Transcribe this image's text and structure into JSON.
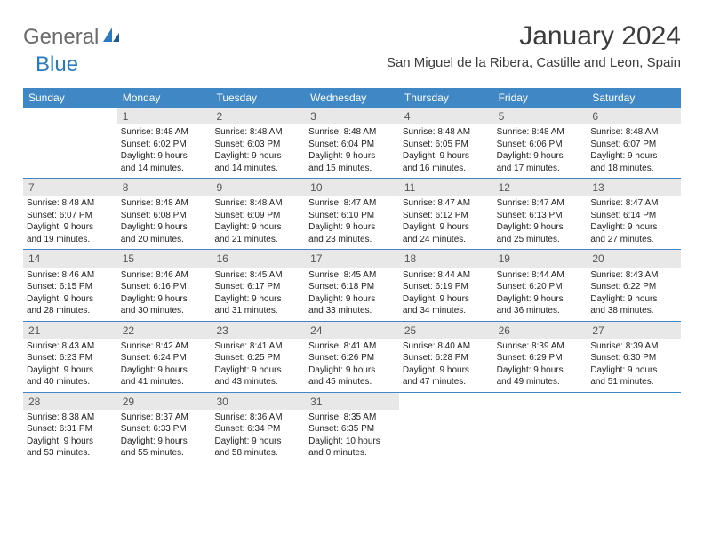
{
  "brand": {
    "part1": "General",
    "part2": "Blue"
  },
  "title": "January 2024",
  "location": "San Miguel de la Ribera, Castille and Leon, Spain",
  "colors": {
    "header_bg": "#3f88c5",
    "header_text": "#ffffff",
    "daynum_bg": "#e8e8e8",
    "rule": "#3f88c5",
    "body_text": "#222222",
    "title_text": "#3c3c3c",
    "logo_gray": "#6b6b6b",
    "logo_blue": "#2a7ac0",
    "page_bg": "#ffffff"
  },
  "day_headers": [
    "Sunday",
    "Monday",
    "Tuesday",
    "Wednesday",
    "Thursday",
    "Friday",
    "Saturday"
  ],
  "weeks": [
    [
      {
        "day": "",
        "sunrise": "",
        "sunset": "",
        "daylight1": "",
        "daylight2": ""
      },
      {
        "day": "1",
        "sunrise": "Sunrise: 8:48 AM",
        "sunset": "Sunset: 6:02 PM",
        "daylight1": "Daylight: 9 hours",
        "daylight2": "and 14 minutes."
      },
      {
        "day": "2",
        "sunrise": "Sunrise: 8:48 AM",
        "sunset": "Sunset: 6:03 PM",
        "daylight1": "Daylight: 9 hours",
        "daylight2": "and 14 minutes."
      },
      {
        "day": "3",
        "sunrise": "Sunrise: 8:48 AM",
        "sunset": "Sunset: 6:04 PM",
        "daylight1": "Daylight: 9 hours",
        "daylight2": "and 15 minutes."
      },
      {
        "day": "4",
        "sunrise": "Sunrise: 8:48 AM",
        "sunset": "Sunset: 6:05 PM",
        "daylight1": "Daylight: 9 hours",
        "daylight2": "and 16 minutes."
      },
      {
        "day": "5",
        "sunrise": "Sunrise: 8:48 AM",
        "sunset": "Sunset: 6:06 PM",
        "daylight1": "Daylight: 9 hours",
        "daylight2": "and 17 minutes."
      },
      {
        "day": "6",
        "sunrise": "Sunrise: 8:48 AM",
        "sunset": "Sunset: 6:07 PM",
        "daylight1": "Daylight: 9 hours",
        "daylight2": "and 18 minutes."
      }
    ],
    [
      {
        "day": "7",
        "sunrise": "Sunrise: 8:48 AM",
        "sunset": "Sunset: 6:07 PM",
        "daylight1": "Daylight: 9 hours",
        "daylight2": "and 19 minutes."
      },
      {
        "day": "8",
        "sunrise": "Sunrise: 8:48 AM",
        "sunset": "Sunset: 6:08 PM",
        "daylight1": "Daylight: 9 hours",
        "daylight2": "and 20 minutes."
      },
      {
        "day": "9",
        "sunrise": "Sunrise: 8:48 AM",
        "sunset": "Sunset: 6:09 PM",
        "daylight1": "Daylight: 9 hours",
        "daylight2": "and 21 minutes."
      },
      {
        "day": "10",
        "sunrise": "Sunrise: 8:47 AM",
        "sunset": "Sunset: 6:10 PM",
        "daylight1": "Daylight: 9 hours",
        "daylight2": "and 23 minutes."
      },
      {
        "day": "11",
        "sunrise": "Sunrise: 8:47 AM",
        "sunset": "Sunset: 6:12 PM",
        "daylight1": "Daylight: 9 hours",
        "daylight2": "and 24 minutes."
      },
      {
        "day": "12",
        "sunrise": "Sunrise: 8:47 AM",
        "sunset": "Sunset: 6:13 PM",
        "daylight1": "Daylight: 9 hours",
        "daylight2": "and 25 minutes."
      },
      {
        "day": "13",
        "sunrise": "Sunrise: 8:47 AM",
        "sunset": "Sunset: 6:14 PM",
        "daylight1": "Daylight: 9 hours",
        "daylight2": "and 27 minutes."
      }
    ],
    [
      {
        "day": "14",
        "sunrise": "Sunrise: 8:46 AM",
        "sunset": "Sunset: 6:15 PM",
        "daylight1": "Daylight: 9 hours",
        "daylight2": "and 28 minutes."
      },
      {
        "day": "15",
        "sunrise": "Sunrise: 8:46 AM",
        "sunset": "Sunset: 6:16 PM",
        "daylight1": "Daylight: 9 hours",
        "daylight2": "and 30 minutes."
      },
      {
        "day": "16",
        "sunrise": "Sunrise: 8:45 AM",
        "sunset": "Sunset: 6:17 PM",
        "daylight1": "Daylight: 9 hours",
        "daylight2": "and 31 minutes."
      },
      {
        "day": "17",
        "sunrise": "Sunrise: 8:45 AM",
        "sunset": "Sunset: 6:18 PM",
        "daylight1": "Daylight: 9 hours",
        "daylight2": "and 33 minutes."
      },
      {
        "day": "18",
        "sunrise": "Sunrise: 8:44 AM",
        "sunset": "Sunset: 6:19 PM",
        "daylight1": "Daylight: 9 hours",
        "daylight2": "and 34 minutes."
      },
      {
        "day": "19",
        "sunrise": "Sunrise: 8:44 AM",
        "sunset": "Sunset: 6:20 PM",
        "daylight1": "Daylight: 9 hours",
        "daylight2": "and 36 minutes."
      },
      {
        "day": "20",
        "sunrise": "Sunrise: 8:43 AM",
        "sunset": "Sunset: 6:22 PM",
        "daylight1": "Daylight: 9 hours",
        "daylight2": "and 38 minutes."
      }
    ],
    [
      {
        "day": "21",
        "sunrise": "Sunrise: 8:43 AM",
        "sunset": "Sunset: 6:23 PM",
        "daylight1": "Daylight: 9 hours",
        "daylight2": "and 40 minutes."
      },
      {
        "day": "22",
        "sunrise": "Sunrise: 8:42 AM",
        "sunset": "Sunset: 6:24 PM",
        "daylight1": "Daylight: 9 hours",
        "daylight2": "and 41 minutes."
      },
      {
        "day": "23",
        "sunrise": "Sunrise: 8:41 AM",
        "sunset": "Sunset: 6:25 PM",
        "daylight1": "Daylight: 9 hours",
        "daylight2": "and 43 minutes."
      },
      {
        "day": "24",
        "sunrise": "Sunrise: 8:41 AM",
        "sunset": "Sunset: 6:26 PM",
        "daylight1": "Daylight: 9 hours",
        "daylight2": "and 45 minutes."
      },
      {
        "day": "25",
        "sunrise": "Sunrise: 8:40 AM",
        "sunset": "Sunset: 6:28 PM",
        "daylight1": "Daylight: 9 hours",
        "daylight2": "and 47 minutes."
      },
      {
        "day": "26",
        "sunrise": "Sunrise: 8:39 AM",
        "sunset": "Sunset: 6:29 PM",
        "daylight1": "Daylight: 9 hours",
        "daylight2": "and 49 minutes."
      },
      {
        "day": "27",
        "sunrise": "Sunrise: 8:39 AM",
        "sunset": "Sunset: 6:30 PM",
        "daylight1": "Daylight: 9 hours",
        "daylight2": "and 51 minutes."
      }
    ],
    [
      {
        "day": "28",
        "sunrise": "Sunrise: 8:38 AM",
        "sunset": "Sunset: 6:31 PM",
        "daylight1": "Daylight: 9 hours",
        "daylight2": "and 53 minutes."
      },
      {
        "day": "29",
        "sunrise": "Sunrise: 8:37 AM",
        "sunset": "Sunset: 6:33 PM",
        "daylight1": "Daylight: 9 hours",
        "daylight2": "and 55 minutes."
      },
      {
        "day": "30",
        "sunrise": "Sunrise: 8:36 AM",
        "sunset": "Sunset: 6:34 PM",
        "daylight1": "Daylight: 9 hours",
        "daylight2": "and 58 minutes."
      },
      {
        "day": "31",
        "sunrise": "Sunrise: 8:35 AM",
        "sunset": "Sunset: 6:35 PM",
        "daylight1": "Daylight: 10 hours",
        "daylight2": "and 0 minutes."
      },
      {
        "day": "",
        "sunrise": "",
        "sunset": "",
        "daylight1": "",
        "daylight2": ""
      },
      {
        "day": "",
        "sunrise": "",
        "sunset": "",
        "daylight1": "",
        "daylight2": ""
      },
      {
        "day": "",
        "sunrise": "",
        "sunset": "",
        "daylight1": "",
        "daylight2": ""
      }
    ]
  ]
}
